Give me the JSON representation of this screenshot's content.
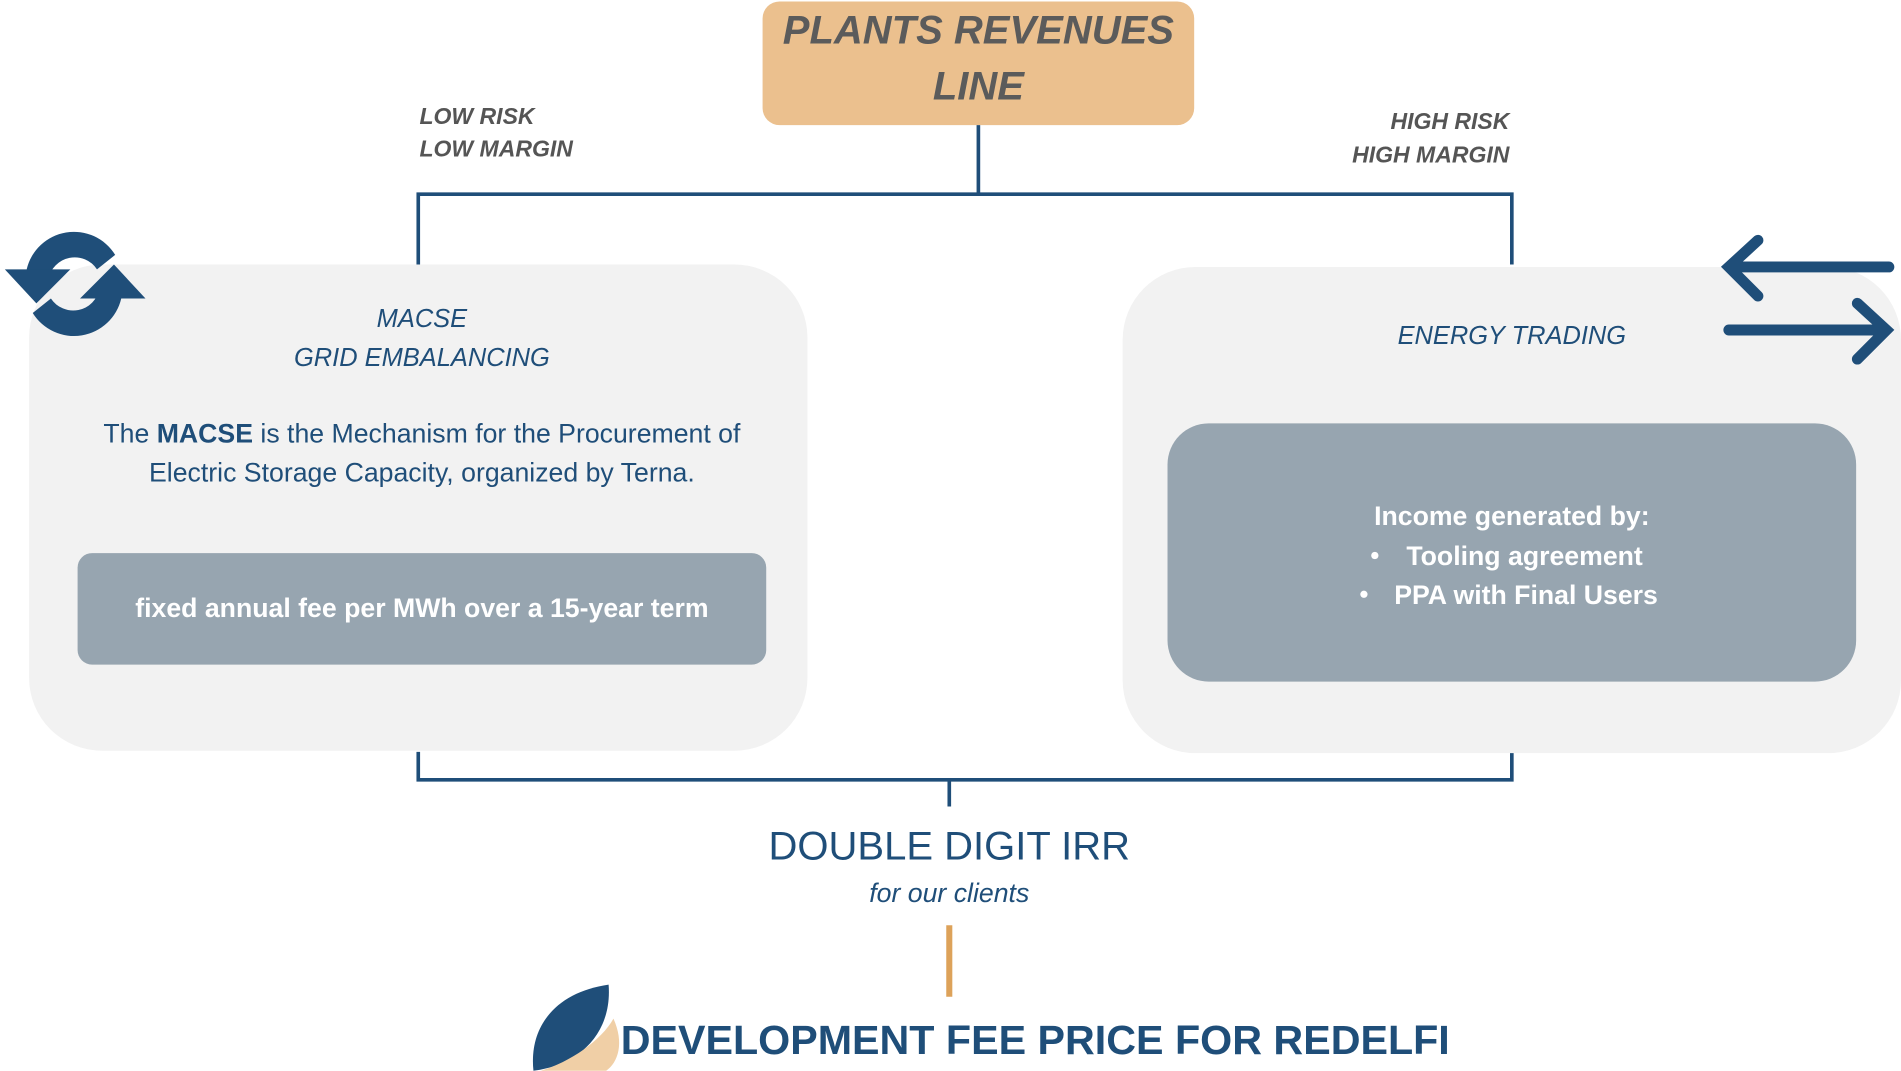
{
  "header": {
    "title_lines": [
      "PLANTS REVENUES",
      "LINE"
    ]
  },
  "left": {
    "risk_lines": [
      "LOW RISK",
      "LOW MARGIN"
    ],
    "heading_lines": [
      "MACSE",
      "GRID EMBALANCING"
    ],
    "description": {
      "line1": [
        "The",
        "MACSE",
        "is the Mechanism for the Procurement of"
      ],
      "line2": "Electric Storage Capacity, organized by Terna."
    },
    "detail": "fixed annual fee per MWh over a 15-year term"
  },
  "right": {
    "risk_lines": [
      "HIGH RISK",
      "HIGH MARGIN"
    ],
    "heading": "ENERGY TRADING",
    "detail_title": "Income generated by:",
    "detail_items": [
      "Tooling agreement",
      "PPA with Final Users"
    ]
  },
  "result": {
    "title": "DOUBLE DIGIT IRR",
    "subtitle": "for our clients"
  },
  "footer": {
    "title": "DEVELOPMENT FEE PRICE FOR REDELFI"
  }
}
